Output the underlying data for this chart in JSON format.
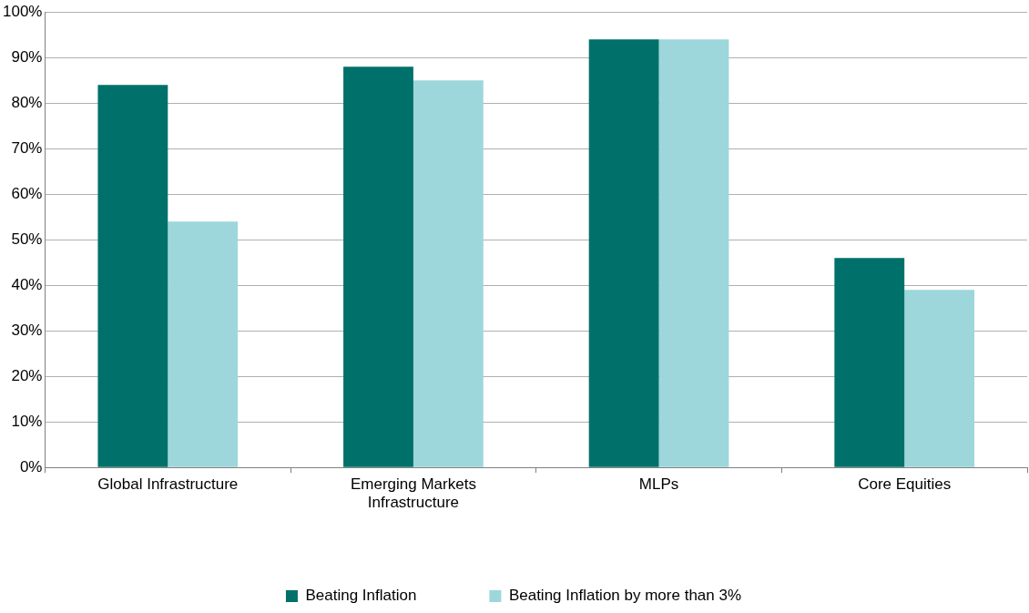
{
  "chart_data": {
    "type": "bar",
    "categories": [
      "Global Infrastructure",
      "Emerging Markets Infrastructure",
      "MLPs",
      "Core Equities"
    ],
    "series": [
      {
        "name": "Beating Inflation",
        "color": "#00716a",
        "values": [
          84,
          88,
          94,
          46
        ]
      },
      {
        "name": "Beating Inflation by more than 3%",
        "color": "#9dd7db",
        "values": [
          54,
          85,
          94,
          39
        ]
      }
    ],
    "ylim": [
      0,
      100
    ],
    "yticks": [
      {
        "value": 0,
        "label": "0%"
      },
      {
        "value": 10,
        "label": "10%"
      },
      {
        "value": 20,
        "label": "20%"
      },
      {
        "value": 30,
        "label": "30%"
      },
      {
        "value": 40,
        "label": "40%"
      },
      {
        "value": 50,
        "label": "50%"
      },
      {
        "value": 60,
        "label": "60%"
      },
      {
        "value": 70,
        "label": "70%"
      },
      {
        "value": 80,
        "label": "80%"
      },
      {
        "value": 90,
        "label": "90%"
      },
      {
        "value": 100,
        "label": "100%"
      }
    ],
    "grid": "y",
    "legend": "bottom"
  }
}
